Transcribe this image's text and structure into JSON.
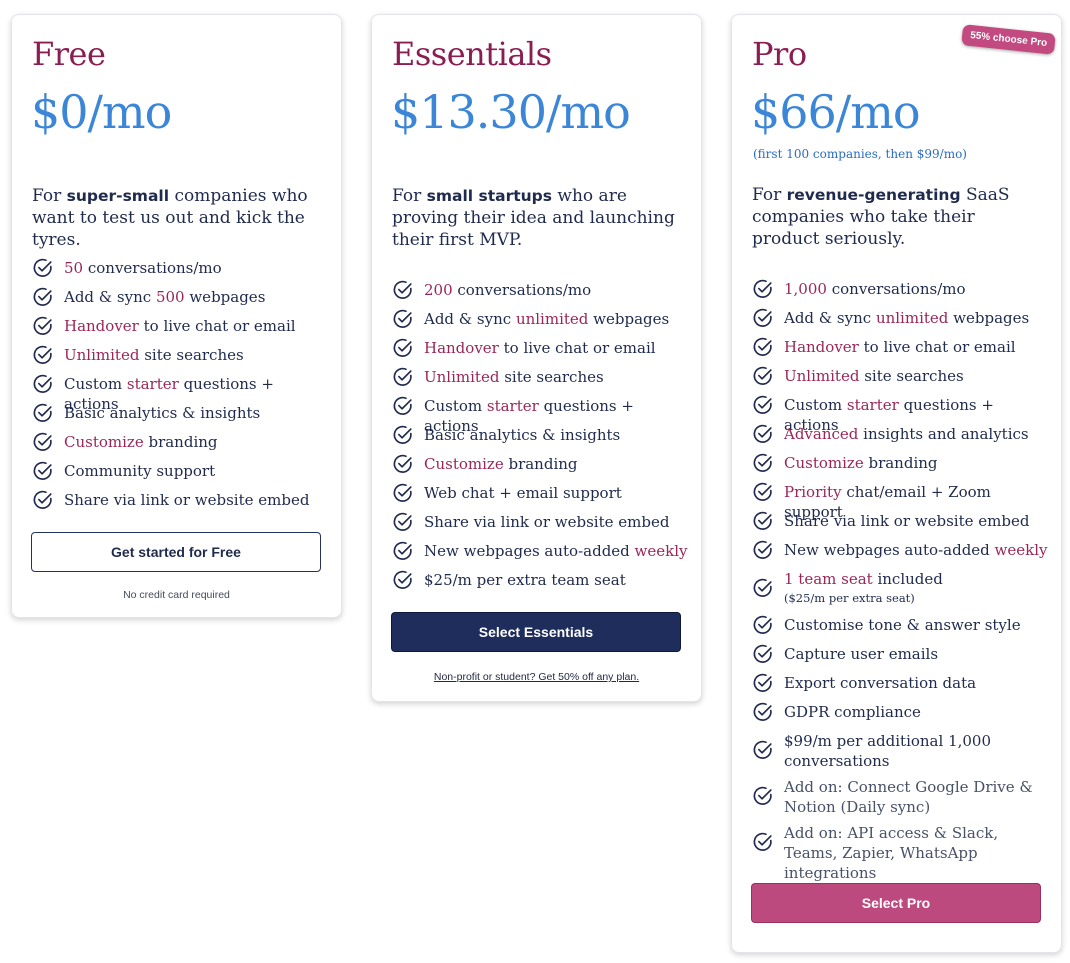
{
  "colors": {
    "title": "#8a1d52",
    "price": "#3b86d6",
    "highlight": "#9a2659",
    "navy": "#1f2d5c",
    "pink": "#bd4a7e"
  },
  "free": {
    "title": "Free",
    "price": "$0/mo",
    "desc": {
      "pre": "For ",
      "bold": "super-small",
      "post": " companies who want to test us out and kick the tyres."
    },
    "features": [
      {
        "hl": "50",
        "text": " conversations/mo"
      },
      {
        "pre": "Add & sync ",
        "hl": "500",
        "text": " webpages"
      },
      {
        "hl": "Handover",
        "text": " to live chat or email"
      },
      {
        "hl": "Unlimited",
        "text": " site searches"
      },
      {
        "pre": "Custom ",
        "hl": "starter",
        "text": " questions + actions"
      },
      {
        "text": "Basic analytics & insights"
      },
      {
        "hl": "Customize",
        "text": " branding"
      },
      {
        "text": "Community support"
      },
      {
        "text": "Share via link or website embed"
      }
    ],
    "button": "Get started for Free",
    "note": "No credit card required"
  },
  "essentials": {
    "title": "Essentials",
    "price": "$13.30/mo",
    "desc": {
      "pre": "For ",
      "bold": "small startups",
      "post": " who are proving their idea and launching their first MVP."
    },
    "features": [
      {
        "hl": "200",
        "text": " conversations/mo"
      },
      {
        "pre": "Add & sync ",
        "hl": "unlimited",
        "text": " webpages"
      },
      {
        "hl": "Handover",
        "text": " to live chat or email"
      },
      {
        "hl": "Unlimited",
        "text": " site searches"
      },
      {
        "pre": "Custom ",
        "hl": "starter",
        "text": " questions + actions"
      },
      {
        "text": "Basic analytics & insights"
      },
      {
        "hl": "Customize",
        "text": " branding"
      },
      {
        "text": "Web chat + email support"
      },
      {
        "text": "Share via link or website embed"
      },
      {
        "pre": "New webpages auto-added ",
        "hl": "weekly"
      },
      {
        "text": "$25/m per extra team seat"
      }
    ],
    "button": "Select Essentials",
    "note": "Non-profit or student? Get 50% off any plan."
  },
  "pro": {
    "badge": "55% choose Pro",
    "title": "Pro",
    "price": "$66/mo",
    "price_note": "(first 100 companies, then $99/mo)",
    "desc": {
      "pre": "For ",
      "bold": "revenue-generating",
      "post": " SaaS companies who take their product seriously."
    },
    "features": [
      {
        "hl": "1,000",
        "text": " conversations/mo"
      },
      {
        "pre": "Add & sync ",
        "hl": "unlimited",
        "text": " webpages"
      },
      {
        "hl": "Handover",
        "text": " to live chat or email"
      },
      {
        "hl": "Unlimited",
        "text": " site searches"
      },
      {
        "pre": "Custom ",
        "hl": "starter",
        "text": " questions + actions"
      },
      {
        "hl": "Advanced",
        "text": " insights and analytics"
      },
      {
        "hl": "Customize",
        "text": " branding"
      },
      {
        "hl": "Priority",
        "text": " chat/email + Zoom support"
      },
      {
        "text": "Share via link or website embed"
      },
      {
        "pre": "New webpages auto-added ",
        "hl": "weekly"
      },
      {
        "hl": "1 team seat",
        "text": " included",
        "sub": "($25/m per extra seat)"
      },
      {
        "text": "Customise tone & answer style"
      },
      {
        "text": "Capture user emails"
      },
      {
        "text": "Export conversation data"
      },
      {
        "text": "GDPR compliance"
      },
      {
        "text": "$99/m per additional 1,000 conversations"
      },
      {
        "text": "Add on: Connect Google Drive & Notion (Daily sync)",
        "addon": true
      },
      {
        "text": "Add on: API access & Slack, Teams, Zapier, WhatsApp integrations",
        "addon": true
      }
    ],
    "button": "Select Pro"
  }
}
